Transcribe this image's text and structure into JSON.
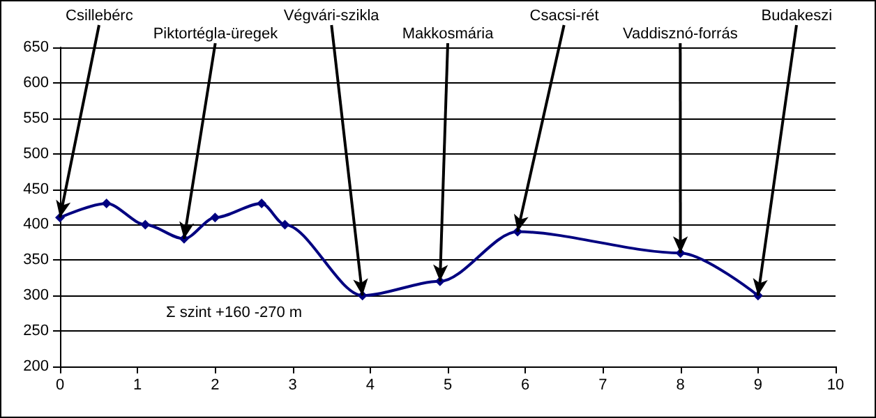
{
  "chart_data": {
    "type": "line",
    "x": [
      0,
      0.6,
      1.1,
      1.6,
      2.0,
      2.6,
      2.9,
      3.9,
      4.9,
      5.9,
      8.0,
      9.0
    ],
    "series": [
      {
        "color": "#000080",
        "values": [
          410,
          430,
          400,
          380,
          410,
          430,
          400,
          300,
          320,
          390,
          360,
          300
        ]
      }
    ],
    "xlim": [
      0,
      10
    ],
    "xticks": [
      0,
      1,
      2,
      3,
      4,
      5,
      6,
      7,
      8,
      9,
      10
    ],
    "ylim": [
      200,
      650
    ],
    "yticks": [
      200,
      250,
      300,
      350,
      400,
      450,
      500,
      550,
      600,
      650
    ],
    "grid": "y",
    "marker": "diamond",
    "line_style": "solid",
    "annotations": [
      {
        "text": "Csillebérc",
        "x": 0,
        "y": 410
      },
      {
        "text": "Piktortégla-üregek",
        "x": 1.6,
        "y": 380
      },
      {
        "text": "Végvári-szikla",
        "x": 3.9,
        "y": 300
      },
      {
        "text": "Makkosmária",
        "x": 4.9,
        "y": 320
      },
      {
        "text": "Csacsi-rét",
        "x": 5.9,
        "y": 390
      },
      {
        "text": "Vaddisznó-forrás",
        "x": 8.0,
        "y": 360
      },
      {
        "text": "Budakeszi",
        "x": 9.0,
        "y": 300
      },
      "Σ szint +160 -270 m"
    ]
  }
}
